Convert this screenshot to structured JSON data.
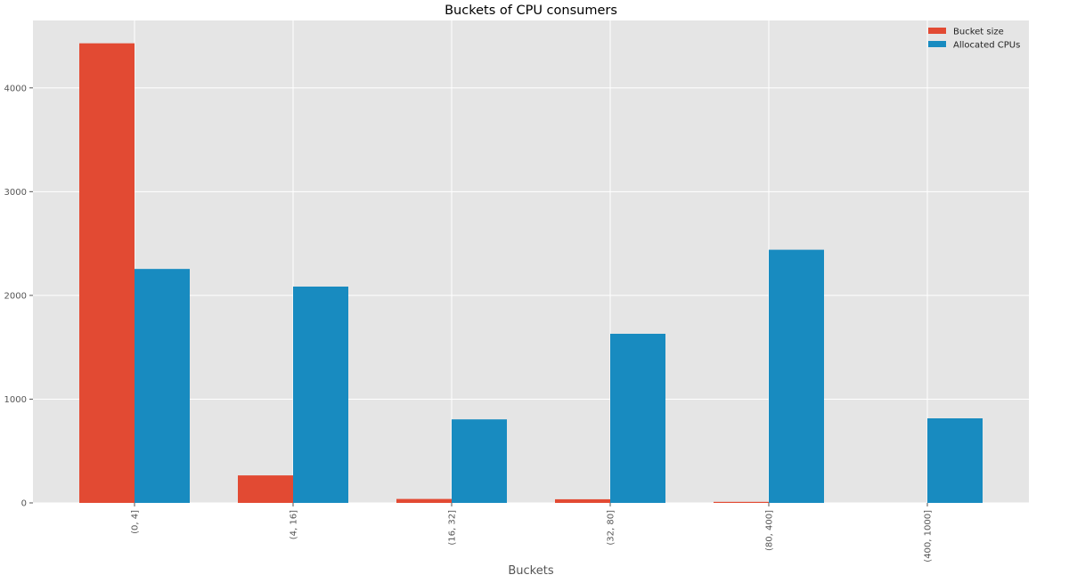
{
  "chart_data": {
    "type": "bar",
    "title": "Buckets of CPU consumers",
    "xlabel": "Buckets",
    "ylabel": "",
    "categories": [
      "(0, 4]",
      "(4, 16]",
      "(16, 32]",
      "(32, 80]",
      "(80, 400]",
      "(400, 1000]"
    ],
    "series": [
      {
        "name": "Bucket size",
        "color": "#e24a33",
        "values": [
          4430,
          265,
          38,
          35,
          10,
          0
        ]
      },
      {
        "name": "Allocated CPUs",
        "color": "#188bc0",
        "values": [
          2255,
          2085,
          805,
          1630,
          2440,
          815
        ]
      }
    ],
    "yticks": [
      0,
      1000,
      2000,
      3000,
      4000
    ],
    "ylim": [
      0,
      4650
    ],
    "grid": true,
    "legend_position": "top-right",
    "background_color": "#e5e5e5",
    "grid_color": "#ffffff"
  }
}
